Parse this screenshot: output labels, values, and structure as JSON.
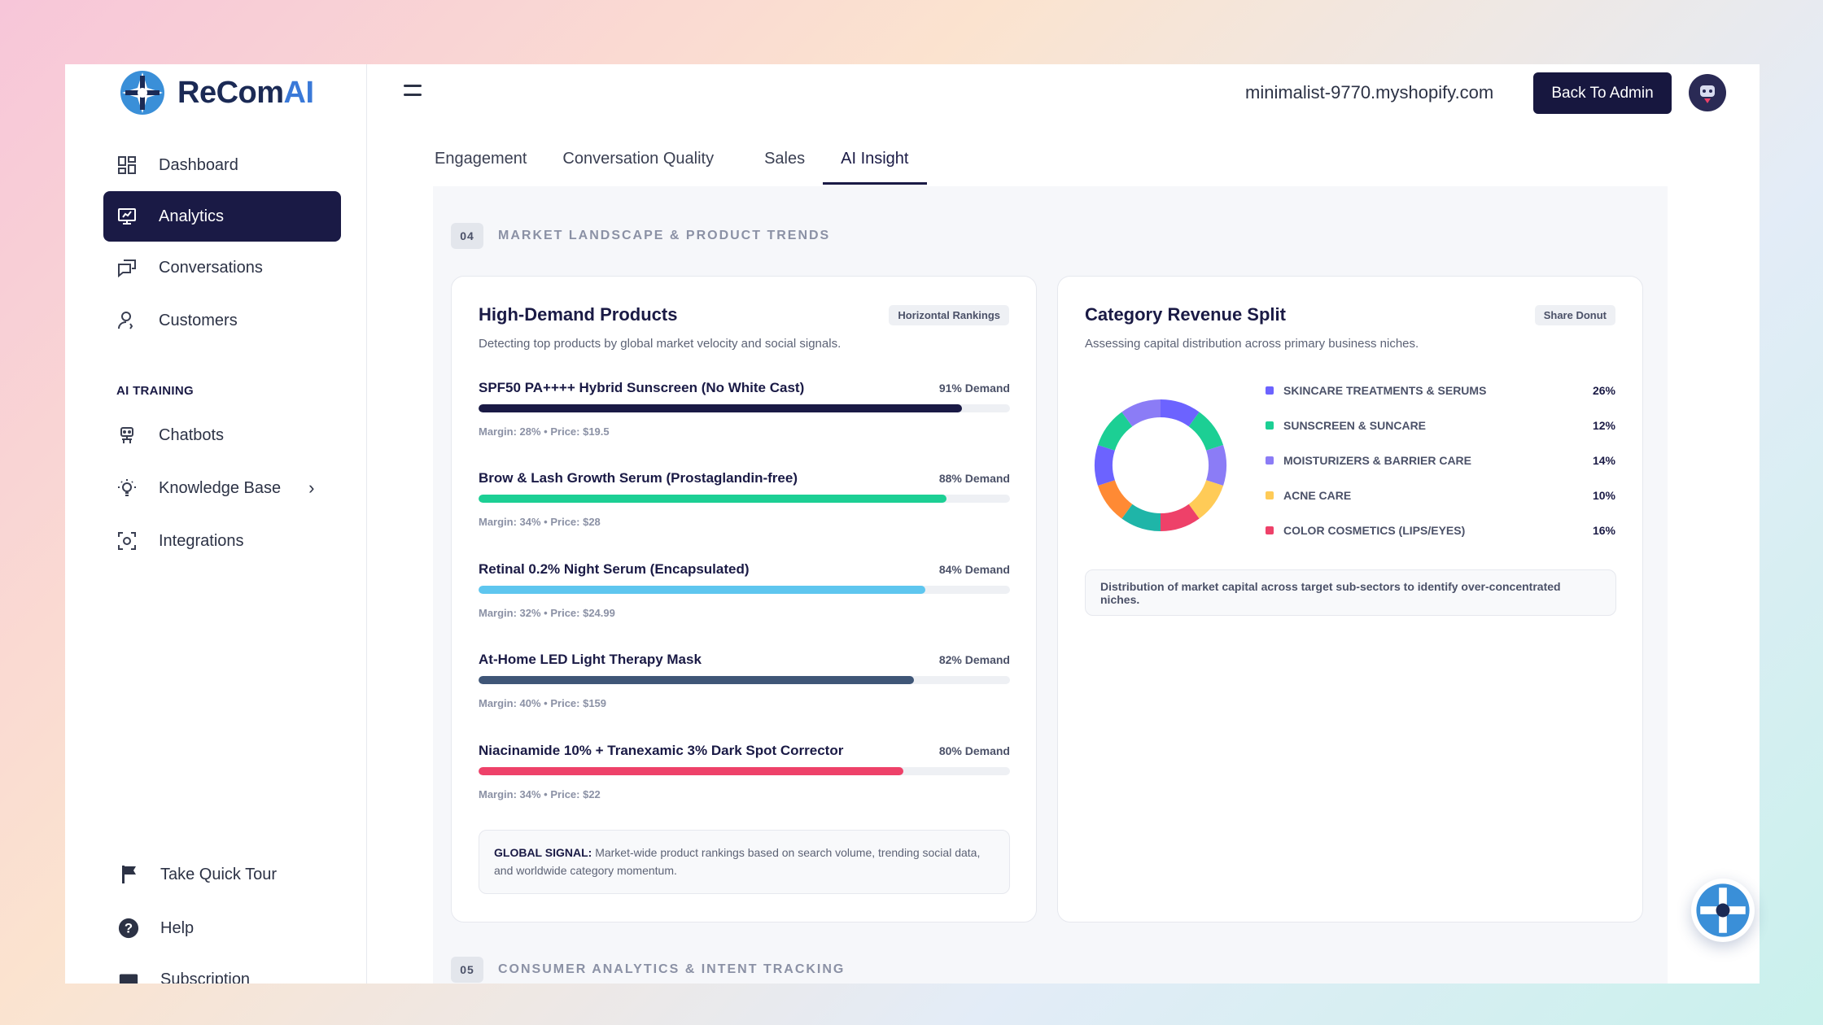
{
  "brand": {
    "name_main": "ReCom",
    "name_accent": "AI"
  },
  "sidebar": {
    "items": [
      {
        "label": "Dashboard",
        "icon": "dashboard-icon"
      },
      {
        "label": "Analytics",
        "icon": "analytics-icon",
        "active": true
      },
      {
        "label": "Conversations",
        "icon": "conversations-icon"
      },
      {
        "label": "Customers",
        "icon": "customers-icon"
      }
    ],
    "section_label": "AI TRAINING",
    "training_items": [
      {
        "label": "Chatbots",
        "icon": "chatbot-icon"
      },
      {
        "label": "Knowledge Base",
        "icon": "lightbulb-icon"
      },
      {
        "label": "Integrations",
        "icon": "integrations-icon"
      }
    ],
    "bottom_items": [
      {
        "label": "Take Quick Tour",
        "icon": "flag-icon"
      },
      {
        "label": "Help",
        "icon": "help-icon"
      },
      {
        "label": "Subscription",
        "icon": "subscription-icon"
      }
    ]
  },
  "header": {
    "shop": "minimalist-9770.myshopify.com",
    "back_button": "Back To Admin"
  },
  "tabs": [
    {
      "label": "Engagement"
    },
    {
      "label": "Conversation Quality"
    },
    {
      "label": "Sales"
    },
    {
      "label": "AI Insight",
      "active": true
    }
  ],
  "section04": {
    "num": "04",
    "title": "MARKET LANDSCAPE & PRODUCT TRENDS"
  },
  "section05": {
    "num": "05",
    "title": "CONSUMER ANALYTICS & INTENT TRACKING"
  },
  "products_card": {
    "title": "High-Demand Products",
    "badge": "Horizontal Rankings",
    "subtitle": "Detecting top products by global market velocity and social signals.",
    "products": [
      {
        "name": "SPF50 PA++++ Hybrid Sunscreen (No White Cast)",
        "demand_label": "91% Demand",
        "demand": 0.91,
        "meta": "Margin: 28% • Price: $19.5",
        "color": "#1a1a45"
      },
      {
        "name": "Brow & Lash Growth Serum (Prostaglandin-free)",
        "demand_label": "88% Demand",
        "demand": 0.88,
        "meta": "Margin: 34% • Price: $28",
        "color": "#1ccf94"
      },
      {
        "name": "Retinal 0.2% Night Serum (Encapsulated)",
        "demand_label": "84% Demand",
        "demand": 0.84,
        "meta": "Margin: 32% • Price: $24.99",
        "color": "#5ec6ef"
      },
      {
        "name": "At-Home LED Light Therapy Mask",
        "demand_label": "82% Demand",
        "demand": 0.82,
        "meta": "Margin: 40% • Price: $159",
        "color": "#3f5677"
      },
      {
        "name": "Niacinamide 10% + Tranexamic 3% Dark Spot Corrector",
        "demand_label": "80% Demand",
        "demand": 0.8,
        "meta": "Margin: 34% • Price: $22",
        "color": "#ee4169"
      }
    ],
    "signal_label": "GLOBAL SIGNAL:",
    "signal_text": "Market-wide product rankings based on search volume, trending social data, and worldwide category momentum."
  },
  "revenue_card": {
    "title": "Category Revenue Split",
    "badge": "Share Donut",
    "subtitle": "Assessing capital distribution across primary business niches.",
    "note": "Distribution of market capital across target sub-sectors to identify over-concentrated niches."
  },
  "chart_data": {
    "type": "pie",
    "categories": [
      "SKINCARE TREATMENTS & SERUMS",
      "SUNSCREEN & SUNCARE",
      "MOISTURIZERS & BARRIER CARE",
      "ACNE CARE",
      "COLOR COSMETICS (LIPS/EYES)"
    ],
    "values": [
      26,
      12,
      14,
      10,
      16
    ],
    "labels": [
      "26%",
      "12%",
      "14%",
      "10%",
      "16%"
    ],
    "colors": [
      "#6c63ff",
      "#1ccf94",
      "#8b7cf6",
      "#ffcb57",
      "#ee4169"
    ],
    "donut_sequence": [
      "#6c63ff",
      "#1ccf94",
      "#8b7cf6",
      "#ffcb57",
      "#ee4169",
      "#1fb5a8",
      "#ff8a34"
    ]
  }
}
